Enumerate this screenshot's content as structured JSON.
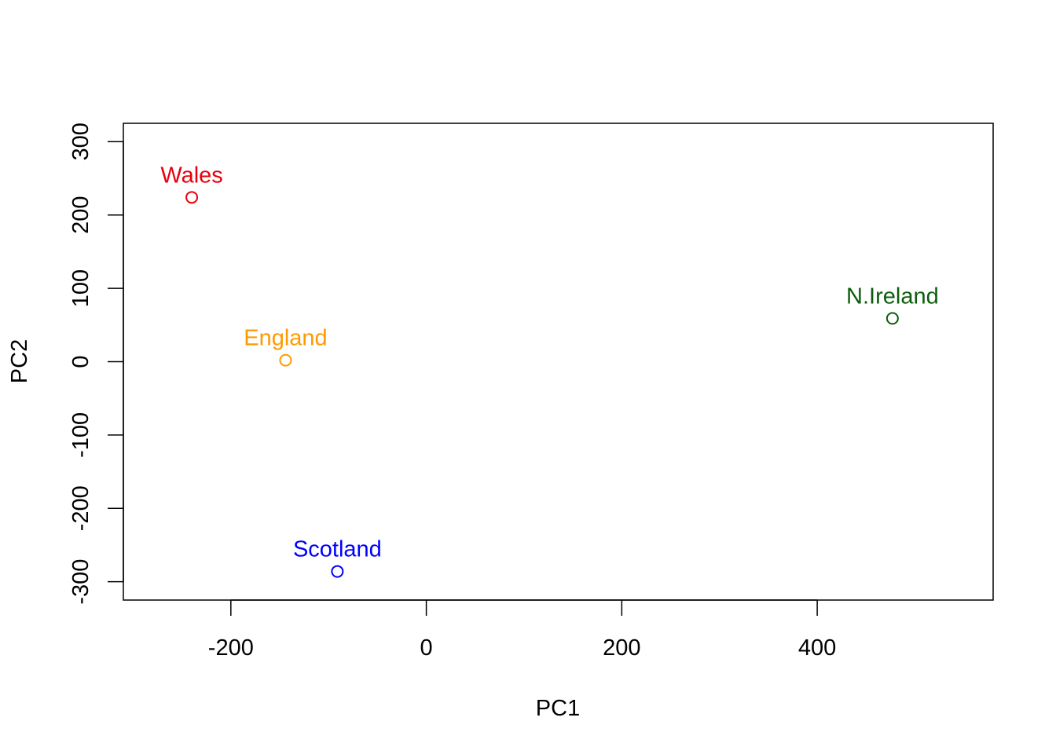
{
  "chart_data": {
    "type": "scatter",
    "title": "",
    "xlabel": "PC1",
    "ylabel": "PC2",
    "xlim": [
      -310,
      580
    ],
    "ylim": [
      -325,
      325
    ],
    "xticks": [
      -200,
      0,
      200,
      400
    ],
    "yticks": [
      -300,
      -200,
      -100,
      0,
      100,
      200,
      300
    ],
    "xtick_labels": [
      "-200",
      "0",
      "200",
      "400"
    ],
    "ytick_labels": [
      "-300",
      "-200",
      "-100",
      "0",
      "100",
      "200",
      "300"
    ],
    "grid": false,
    "marker": "open-circle",
    "points": [
      {
        "label": "England",
        "x": -144,
        "y": 2,
        "color": "#FF9900"
      },
      {
        "label": "Wales",
        "x": -240,
        "y": 224,
        "color": "#E8000B"
      },
      {
        "label": "Scotland",
        "x": -91,
        "y": -286,
        "color": "#0000FF"
      },
      {
        "label": "N.Ireland",
        "x": 477,
        "y": 59,
        "color": "#0B5D0B"
      }
    ]
  }
}
